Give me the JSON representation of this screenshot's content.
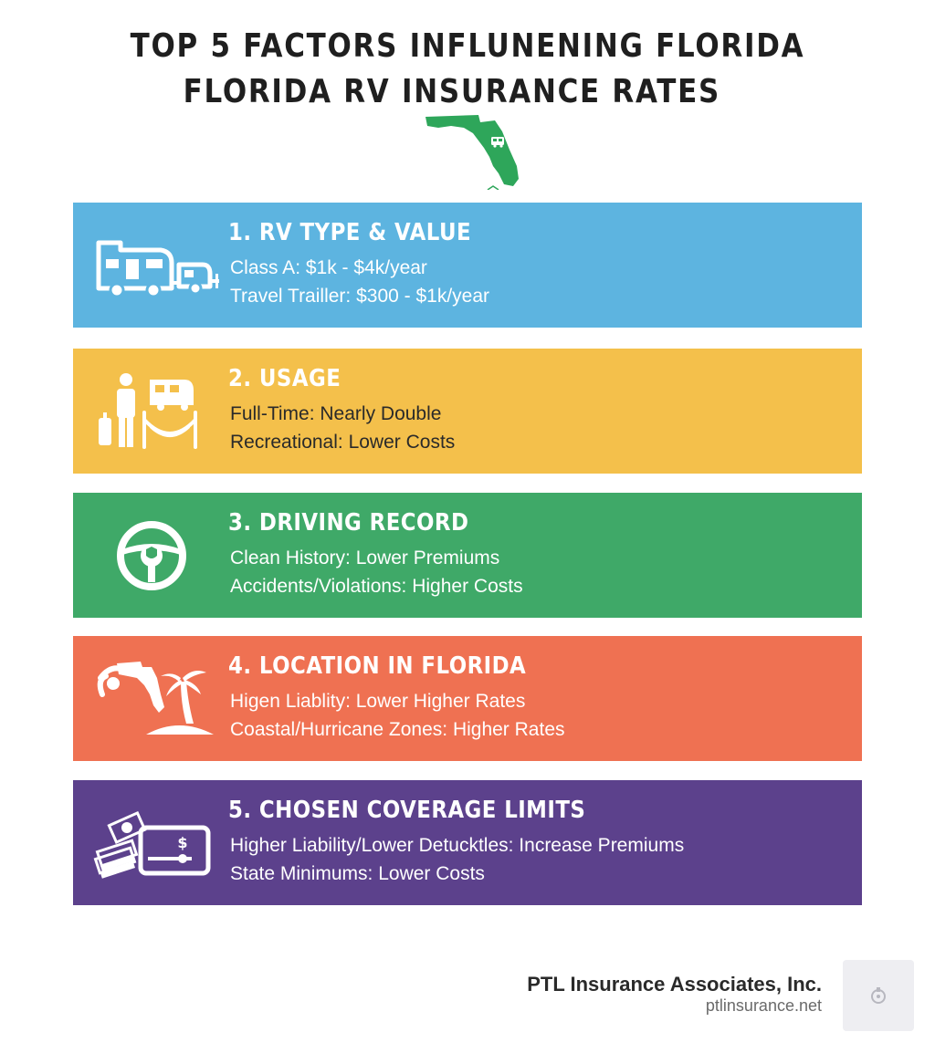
{
  "title": {
    "line1": "TOP 5 FACTORS INFLUNENING FLORIDA",
    "line2": "FLORIDA RV INSURANCE RATES"
  },
  "factors": [
    {
      "heading": "1. RV TYPE & VALUE",
      "line1": "Class A: $1k - $4k/year",
      "line2": "Travel Trailler: $300 - $1k/year",
      "icon": "rv-trailer-icon",
      "color": "#5db4e0"
    },
    {
      "heading": "2. USAGE",
      "line1": "Full-Time: Nearly Double",
      "line2": "Recreational: Lower Costs",
      "icon": "traveler-hammock-icon",
      "color": "#f4c04b"
    },
    {
      "heading": "3. DRIVING RECORD",
      "line1": "Clean History: Lower Premiums",
      "line2": "Accidents/Violations: Higher Costs",
      "icon": "steering-wheel-shield-icon",
      "color": "#3fa968"
    },
    {
      "heading": "4. LOCATION IN FLORIDA",
      "line1": "Higen Liablity: Lower Higher Rates",
      "line2": "Coastal/Hurricane Zones: Higher Rates",
      "icon": "hurricane-palm-icon",
      "color": "#ef7152"
    },
    {
      "heading": "5. CHOSEN COVERAGE LIMITS",
      "line1": "Higher Liability/Lower Detucktles: Increase Premiums",
      "line2": "State Minimums: Lower Costs",
      "icon": "money-card-icon",
      "color": "#5c418c"
    }
  ],
  "footer": {
    "company": "PTL Insurance Associates, Inc.",
    "url": "ptlinsurance.net"
  },
  "colors": {
    "florida_map": "#2ea65a",
    "title_text": "#1f1f1f"
  }
}
